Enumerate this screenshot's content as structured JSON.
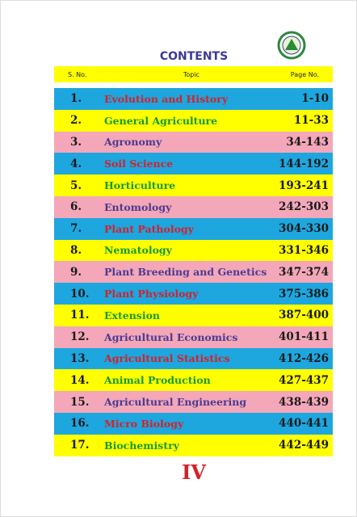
{
  "title": "CONTENTS",
  "header": {
    "sno": "S. No.",
    "topic": "Topic",
    "page": "Page No."
  },
  "rows": [
    [
      "1.",
      "Evolution and History",
      "1-10"
    ],
    [
      "2.",
      "General Agriculture",
      "11-33"
    ],
    [
      "3.",
      "Agronomy",
      "34-143"
    ],
    [
      "4.",
      "Soil Science",
      "144-192"
    ],
    [
      "5.",
      "Horticulture",
      "193-241"
    ],
    [
      "6.",
      "Entomology",
      "242-303"
    ],
    [
      "7.",
      "Plant Pathology",
      "304-330"
    ],
    [
      "8.",
      "Nematology",
      "331-346"
    ],
    [
      "9.",
      "Plant Breeding and  Genetics",
      "347-374"
    ],
    [
      "10.",
      "Plant Physiology",
      "375-386"
    ],
    [
      "11.",
      "Extension",
      "387-400"
    ],
    [
      "12.",
      "Agricultural Economics",
      "401-411"
    ],
    [
      "13.",
      "Agricultural Statistics",
      "412-426"
    ],
    [
      "14.",
      "Animal Production",
      "427-437"
    ],
    [
      "15.",
      "Agricultural  Engineering",
      "438-439"
    ],
    [
      "16.",
      "Micro Biology",
      "440-441"
    ],
    [
      "17.",
      "Biochemistry",
      "442-449"
    ]
  ],
  "page_number": "IV"
}
